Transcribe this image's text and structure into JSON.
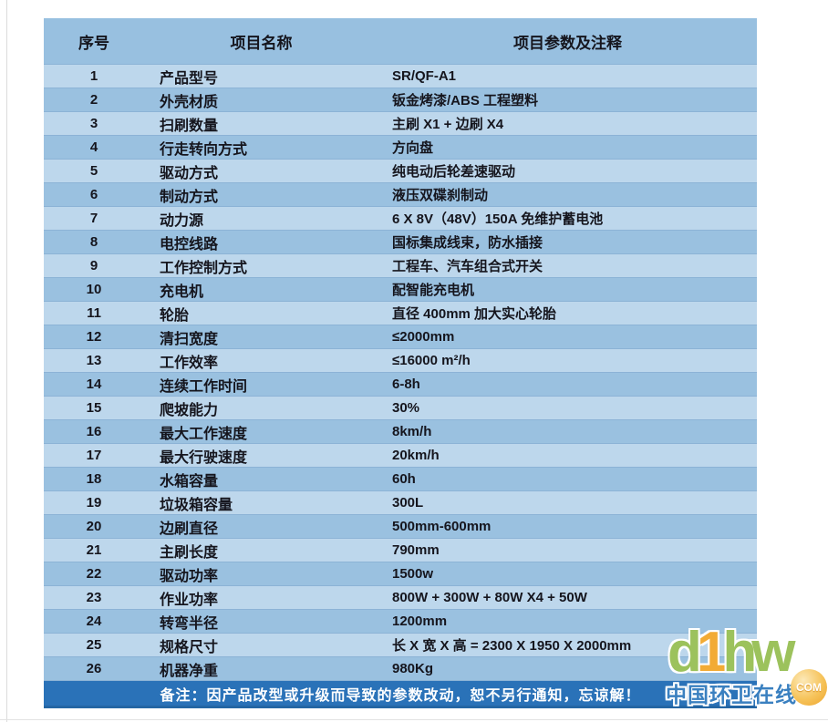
{
  "table": {
    "headers": [
      "序号",
      "项目名称",
      "项目参数及注释"
    ],
    "rows": [
      {
        "no": "1",
        "name": "产品型号",
        "value": "SR/QF-A1"
      },
      {
        "no": "2",
        "name": "外壳材质",
        "value": "钣金烤漆/ABS 工程塑料"
      },
      {
        "no": "3",
        "name": "扫刷数量",
        "value": "主刷 X1 + 边刷 X4"
      },
      {
        "no": "4",
        "name": "行走转向方式",
        "value": "方向盘"
      },
      {
        "no": "5",
        "name": "驱动方式",
        "value": "纯电动后轮差速驱动"
      },
      {
        "no": "6",
        "name": "制动方式",
        "value": "液压双碟刹制动"
      },
      {
        "no": "7",
        "name": "动力源",
        "value": "6 X 8V（48V）150A 免维护蓄电池"
      },
      {
        "no": "8",
        "name": "电控线路",
        "value": "国标集成线束，防水插接"
      },
      {
        "no": "9",
        "name": "工作控制方式",
        "value": "工程车、汽车组合式开关"
      },
      {
        "no": "10",
        "name": "充电机",
        "value": "配智能充电机"
      },
      {
        "no": "11",
        "name": "轮胎",
        "value": "直径 400mm 加大实心轮胎"
      },
      {
        "no": "12",
        "name": "清扫宽度",
        "value": "≤2000mm"
      },
      {
        "no": "13",
        "name": "工作效率",
        "value": "≤16000 m²/h"
      },
      {
        "no": "14",
        "name": "连续工作时间",
        "value": "6-8h"
      },
      {
        "no": "15",
        "name": "爬坡能力",
        "value": "30%"
      },
      {
        "no": "16",
        "name": "最大工作速度",
        "value": "8km/h"
      },
      {
        "no": "17",
        "name": "最大行驶速度",
        "value": "20km/h"
      },
      {
        "no": "18",
        "name": "水箱容量",
        "value": "60h"
      },
      {
        "no": "19",
        "name": "垃圾箱容量",
        "value": "300L"
      },
      {
        "no": "20",
        "name": "边刷直径",
        "value": "500mm-600mm"
      },
      {
        "no": "21",
        "name": "主刷长度",
        "value": "790mm"
      },
      {
        "no": "22",
        "name": "驱动功率",
        "value": "1500w"
      },
      {
        "no": "23",
        "name": "作业功率",
        "value": "800W + 300W + 80W X4 + 50W"
      },
      {
        "no": "24",
        "name": "转弯半径",
        "value": "1200mm"
      },
      {
        "no": "25",
        "name": "规格尺寸",
        "value": "长 X 宽 X 高 = 2300 X 1950 X 2000mm"
      },
      {
        "no": "26",
        "name": "机器净重",
        "value": "980Kg"
      }
    ],
    "footer_note": "备注：因产品改型或升级而导致的参数改动，恕不另行通知，忘谅解！"
  },
  "watermark": {
    "logo": [
      "d",
      "1",
      "hw"
    ],
    "site_name": "中国环卫在线",
    "badge": "COM"
  },
  "colors": {
    "header_bg": "#98c0e0",
    "row_light": "#bdd7ec",
    "row_dark": "#9ac1e0",
    "footer_bg": "#2a72b8",
    "footer_text": "#ffffff",
    "watermark_green": "#9cc25c",
    "watermark_orange": "#f2ab35",
    "watermark_blue": "#3a80c0"
  }
}
